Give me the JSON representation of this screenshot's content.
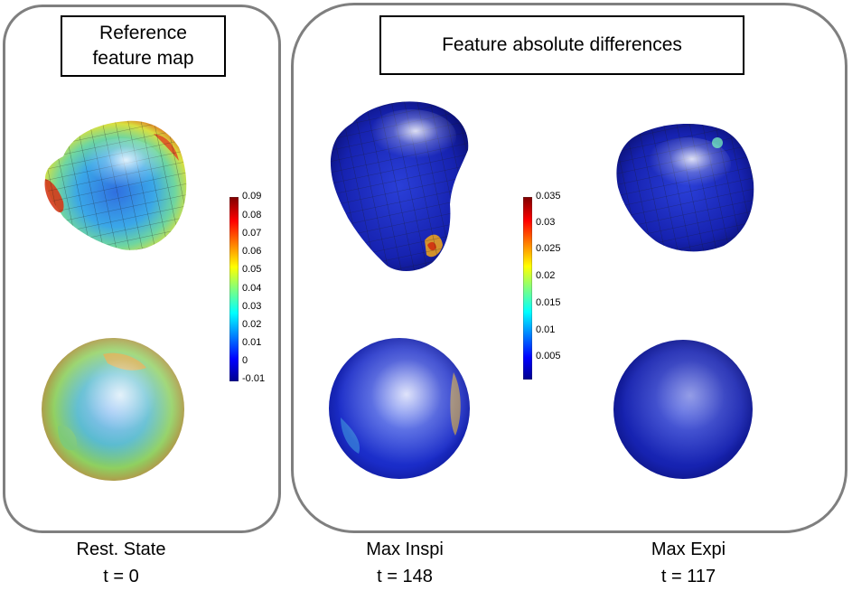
{
  "panels": {
    "reference": {
      "title_line1": "Reference",
      "title_line2": "feature map"
    },
    "differences": {
      "title": "Feature absolute differences"
    }
  },
  "colorbars": {
    "reference": {
      "ticks": [
        "0.09",
        "0.08",
        "0.07",
        "0.06",
        "0.05",
        "0.04",
        "0.03",
        "0.02",
        "0.01",
        "0",
        "-0.01"
      ]
    },
    "differences": {
      "ticks": [
        "0.035",
        "0.03",
        "0.025",
        "0.02",
        "0.015",
        "0.01",
        "0.005"
      ]
    }
  },
  "columns": [
    {
      "state": "Rest. State",
      "time": "t = 0"
    },
    {
      "state": "Max Inspi",
      "time": "t = 148"
    },
    {
      "state": "Max Expi",
      "time": "t = 117"
    }
  ],
  "colors": {
    "panel_border": "#7f7f7f",
    "jet_low": "#00008f",
    "jet_high": "#7f0000"
  }
}
